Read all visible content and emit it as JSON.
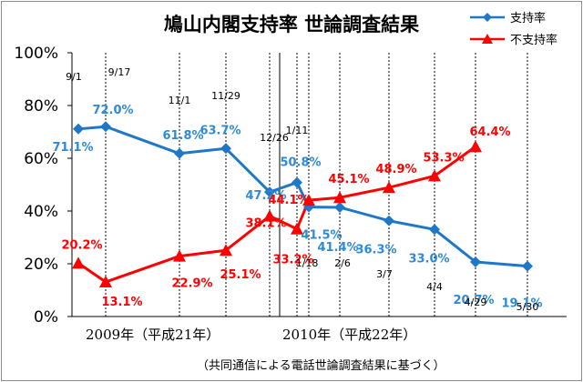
{
  "chart_data": {
    "type": "line",
    "title": "鳩山内閣支持率 世論調査結果",
    "categories": [
      "9/1",
      "9/17",
      "11/1",
      "11/29",
      "12/26",
      "1/11",
      "1/18",
      "2/6",
      "3/7",
      "4/4",
      "4/29",
      "5/30"
    ],
    "series": [
      {
        "name": "支持率",
        "color": "#1f77c8",
        "marker": "diamond",
        "values": [
          71.1,
          72.0,
          61.8,
          63.7,
          47.2,
          50.8,
          41.5,
          41.4,
          36.3,
          33.0,
          20.7,
          19.1
        ]
      },
      {
        "name": "不支持率",
        "color": "#ff0000",
        "marker": "triangle",
        "values": [
          20.2,
          13.1,
          22.9,
          25.1,
          38.1,
          33.2,
          44.1,
          45.1,
          48.9,
          53.3,
          64.4,
          null
        ]
      }
    ],
    "ylim": [
      0,
      100
    ],
    "yticks": [
      "0%",
      "20%",
      "40%",
      "60%",
      "80%",
      "100%"
    ],
    "year_labels": [
      "2009年（平成21年）",
      "2010年（平成22年）"
    ],
    "legend_position": "top-right",
    "grid": "dashed vertical gridlines at each date",
    "source_note": "（共同通信による電話世論調査結果に基づく）"
  }
}
